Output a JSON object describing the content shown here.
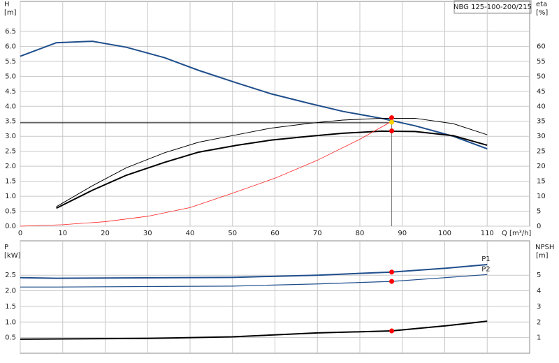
{
  "chart_data": [
    {
      "type": "line",
      "title": "NBG 125-100-200/215",
      "y_label": "H",
      "y_unit": "[m]",
      "y2_label": "eta",
      "y2_unit": "[%]",
      "x_label": "Q [m³/h]",
      "xlim": [
        0,
        120
      ],
      "xticks": [
        0,
        10,
        20,
        30,
        40,
        50,
        60,
        70,
        80,
        90,
        100,
        110
      ],
      "ylim": [
        0,
        7.5
      ],
      "yticks": [
        {
          "value": 0,
          "label": "0.0"
        },
        0.5,
        {
          "value": 1,
          "label": "1.0"
        },
        1.5,
        {
          "value": 2,
          "label": "2.0"
        },
        2.5,
        {
          "value": 3,
          "label": "3.0"
        },
        3.5,
        {
          "value": 4,
          "label": "4.0"
        },
        4.5,
        {
          "value": 5,
          "label": "5.0"
        },
        5.5,
        {
          "value": 6,
          "label": "6.0"
        },
        6.5
      ],
      "y2lim": [
        0,
        75
      ],
      "y2ticks": [
        0,
        5,
        10,
        15,
        20,
        25,
        30,
        35,
        40,
        45,
        50,
        55,
        60
      ],
      "grid": true,
      "series": [
        {
          "color": "#1f4e8c",
          "width": 2,
          "axis": "y",
          "x": [
            0,
            8.5,
            17,
            25,
            34,
            42,
            51,
            59,
            68,
            76,
            85,
            93,
            102,
            110
          ],
          "values": [
            5.67,
            6.12,
            6.17,
            5.97,
            5.62,
            5.2,
            4.78,
            4.42,
            4.1,
            3.83,
            3.6,
            3.35,
            3.0,
            2.58
          ]
        },
        {
          "color": "#000000",
          "width": 1,
          "axis": "y2",
          "x": [
            8.5,
            17,
            25,
            34,
            42,
            51,
            59,
            68,
            76,
            85,
            93,
            102,
            110
          ],
          "values": [
            6.5,
            13.5,
            19.5,
            24.5,
            28,
            30.5,
            32.7,
            34.3,
            35.4,
            36,
            36,
            34.2,
            30.5
          ]
        },
        {
          "color": "#000000",
          "width": 2,
          "axis": "y2",
          "x": [
            8.5,
            17,
            25,
            34,
            42,
            51,
            59,
            68,
            76,
            85,
            93,
            102,
            110
          ],
          "values": [
            6,
            12,
            17,
            21.3,
            24.7,
            27,
            28.7,
            30,
            31,
            31.7,
            31.6,
            30.2,
            27
          ]
        },
        {
          "color": "#ff2020",
          "width": 0.8,
          "axis": "y",
          "x": [
            0,
            10,
            20,
            30,
            40,
            50,
            60,
            70,
            80,
            87.5
          ],
          "values": [
            0,
            0.05,
            0.15,
            0.33,
            0.62,
            1.1,
            1.6,
            2.2,
            2.9,
            3.5
          ]
        }
      ],
      "duty_point": {
        "x": 87.5,
        "y": 3.45
      },
      "markers": [
        {
          "x": 87.5,
          "y": 3.62,
          "axis": "y",
          "color": "#ff0000"
        },
        {
          "x": 87.5,
          "y": 3.47,
          "axis": "y",
          "color": "#ffd000"
        },
        {
          "x": 87.5,
          "y": 31.8,
          "axis": "y2",
          "color": "#ff0000"
        }
      ]
    },
    {
      "type": "line",
      "y_label": "P",
      "y_unit": "[kW]",
      "y2_label": "NPSH",
      "y2_unit": "[m]",
      "xlim": [
        0,
        120
      ],
      "xticks": [
        0,
        10,
        20,
        30,
        40,
        50,
        60,
        70,
        80,
        90,
        100,
        110
      ],
      "ylim": [
        0,
        3.6
      ],
      "yticks": [
        0.5,
        {
          "value": 1,
          "label": "1.0"
        },
        1.5,
        {
          "value": 2,
          "label": "2.0"
        },
        2.5
      ],
      "y2lim": [
        0,
        7.2
      ],
      "y2ticks": [
        1,
        2,
        3,
        4,
        5
      ],
      "grid": true,
      "series": [
        {
          "name": "P1",
          "color": "#1f4e8c",
          "width": 2,
          "axis": "y",
          "x": [
            0,
            8.5,
            50,
            70,
            87.5,
            100,
            110
          ],
          "values": [
            2.42,
            2.4,
            2.43,
            2.5,
            2.6,
            2.72,
            2.84
          ]
        },
        {
          "name": "P2",
          "color": "#1f4e8c",
          "width": 1.2,
          "axis": "y",
          "x": [
            0,
            8.5,
            50,
            70,
            87.5,
            100,
            110
          ],
          "values": [
            2.12,
            2.12,
            2.15,
            2.22,
            2.3,
            2.42,
            2.52
          ]
        },
        {
          "color": "#000000",
          "width": 2,
          "axis": "y2",
          "x": [
            0,
            30,
            50,
            70,
            87.5,
            100,
            110
          ],
          "values": [
            0.9,
            0.95,
            1.05,
            1.3,
            1.43,
            1.75,
            2.05
          ]
        }
      ],
      "markers": [
        {
          "x": 87.5,
          "y": 2.6,
          "axis": "y",
          "color": "#ff0000"
        },
        {
          "x": 87.5,
          "y": 2.3,
          "axis": "y",
          "color": "#ff0000"
        },
        {
          "x": 87.5,
          "y": 1.43,
          "axis": "y2",
          "color": "#ff0000"
        }
      ]
    }
  ]
}
